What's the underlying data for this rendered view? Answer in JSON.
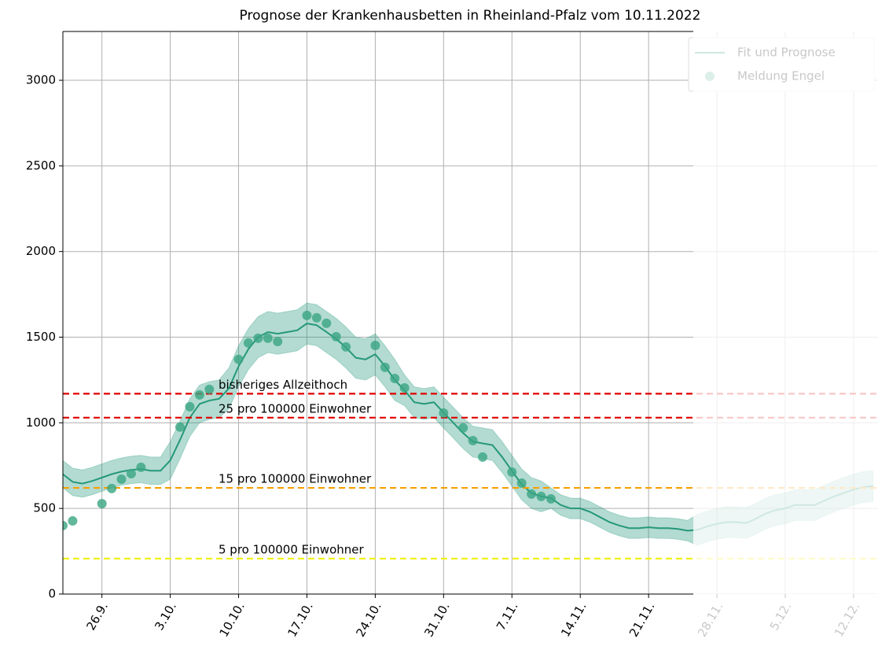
{
  "chart_data": {
    "type": "line",
    "title": "Prognose der Krankenhausbetten in Rheinland-Pfalz vom 10.11.2022",
    "x": [
      -4,
      -3,
      -2,
      -1,
      0,
      1,
      2,
      3,
      4,
      5,
      6,
      7,
      8,
      9,
      10,
      11,
      12,
      13,
      14,
      15,
      16,
      17,
      18,
      19,
      20,
      21,
      22,
      23,
      24,
      25,
      26,
      27,
      28,
      29,
      30,
      31,
      32,
      33,
      34,
      35,
      36,
      37,
      38,
      39,
      40,
      41,
      42,
      43,
      44,
      45,
      46,
      47,
      48,
      49,
      50,
      51,
      52,
      53,
      54,
      55,
      56,
      57,
      58,
      59,
      60,
      61,
      62,
      63,
      64,
      65,
      66,
      67,
      68,
      69,
      70,
      71,
      72,
      73,
      74,
      75,
      76,
      77,
      78,
      79
    ],
    "series": [
      {
        "name": "Fit und Prognose",
        "color": "#25987a",
        "values": [
          700,
          655,
          645,
          660,
          680,
          700,
          715,
          725,
          730,
          720,
          720,
          780,
          900,
          1030,
          1110,
          1130,
          1140,
          1200,
          1330,
          1430,
          1500,
          1530,
          1520,
          1530,
          1540,
          1580,
          1570,
          1530,
          1490,
          1440,
          1380,
          1370,
          1400,
          1330,
          1250,
          1190,
          1120,
          1110,
          1120,
          1060,
          1000,
          940,
          890,
          880,
          870,
          800,
          720,
          640,
          590,
          570,
          560,
          520,
          500,
          500,
          480,
          450,
          420,
          400,
          385,
          385,
          390,
          385,
          385,
          380,
          370,
          375,
          395,
          410,
          420,
          420,
          415,
          440,
          470,
          490,
          500,
          520,
          520,
          520,
          545,
          570,
          590,
          610,
          625,
          630
        ],
        "upper": [
          780,
          735,
          725,
          740,
          760,
          780,
          795,
          805,
          810,
          800,
          800,
          890,
          1010,
          1140,
          1220,
          1240,
          1250,
          1320,
          1450,
          1550,
          1620,
          1650,
          1640,
          1650,
          1660,
          1700,
          1690,
          1650,
          1610,
          1560,
          1500,
          1490,
          1520,
          1450,
          1370,
          1280,
          1210,
          1200,
          1210,
          1150,
          1090,
          1030,
          980,
          970,
          960,
          890,
          810,
          730,
          680,
          660,
          620,
          580,
          560,
          560,
          540,
          510,
          480,
          460,
          445,
          445,
          450,
          445,
          445,
          440,
          430,
          465,
          485,
          500,
          510,
          510,
          505,
          530,
          560,
          580,
          590,
          610,
          610,
          610,
          635,
          660,
          680,
          700,
          715,
          720
        ],
        "lower": [
          620,
          575,
          565,
          580,
          600,
          620,
          635,
          645,
          650,
          640,
          640,
          670,
          790,
          920,
          1000,
          1020,
          1030,
          1080,
          1210,
          1310,
          1380,
          1410,
          1400,
          1410,
          1420,
          1460,
          1450,
          1410,
          1370,
          1320,
          1260,
          1250,
          1280,
          1210,
          1130,
          1100,
          1030,
          1020,
          1030,
          970,
          910,
          850,
          800,
          790,
          780,
          710,
          630,
          550,
          500,
          480,
          500,
          460,
          440,
          440,
          420,
          390,
          360,
          340,
          325,
          325,
          330,
          325,
          325,
          320,
          310,
          285,
          305,
          320,
          330,
          330,
          325,
          350,
          380,
          400,
          410,
          430,
          430,
          430,
          455,
          480,
          500,
          520,
          535,
          540
        ]
      },
      {
        "name": "Meldung Engel",
        "type": "scatter",
        "color": "#3aa582",
        "x": [
          -4,
          -3,
          0,
          1,
          2,
          3,
          4,
          8,
          9,
          10,
          11,
          14,
          15,
          16,
          17,
          18,
          21,
          22,
          23,
          24,
          25,
          28,
          29,
          30,
          31,
          35,
          37,
          38,
          39,
          42,
          43,
          44,
          45,
          46
        ],
        "values": [
          400,
          427,
          528,
          616,
          671,
          703,
          740,
          975,
          1094,
          1163,
          1195,
          1370,
          1466,
          1494,
          1494,
          1475,
          1627,
          1613,
          1581,
          1503,
          1443,
          1452,
          1324,
          1259,
          1204,
          1057,
          970,
          896,
          800,
          712,
          648,
          584,
          570,
          556
        ]
      }
    ],
    "hlines": [
      {
        "value": 1170,
        "label": "bisheriges Allzeithoch",
        "color": "#e00000"
      },
      {
        "value": 1030,
        "label": "25 pro 100000 Einwohner",
        "color": "#e00000"
      },
      {
        "value": 620,
        "label": "15 pro 100000 Einwohner",
        "color": "#f5a000"
      },
      {
        "value": 207,
        "label": "5 pro 100000 Einwohner",
        "color": "#f0f000"
      }
    ],
    "xlim": [
      -4,
      79.5
    ],
    "xticks": [
      {
        "value": 0,
        "label": "26.9."
      },
      {
        "value": 7,
        "label": "3.10."
      },
      {
        "value": 14,
        "label": "10.10."
      },
      {
        "value": 21,
        "label": "17.10."
      },
      {
        "value": 28,
        "label": "24.10."
      },
      {
        "value": 35,
        "label": "31.10."
      },
      {
        "value": 42,
        "label": "7.11."
      },
      {
        "value": 49,
        "label": "14.11."
      },
      {
        "value": 56,
        "label": "21.11."
      },
      {
        "value": 63,
        "label": "28.11."
      },
      {
        "value": 70,
        "label": "5.12."
      },
      {
        "value": 77,
        "label": "12.12."
      }
    ],
    "ylim": [
      0,
      3285
    ],
    "yticks": [
      0,
      500,
      1000,
      1500,
      2000,
      2500,
      3000
    ],
    "grid": true,
    "legend": "upper right"
  }
}
